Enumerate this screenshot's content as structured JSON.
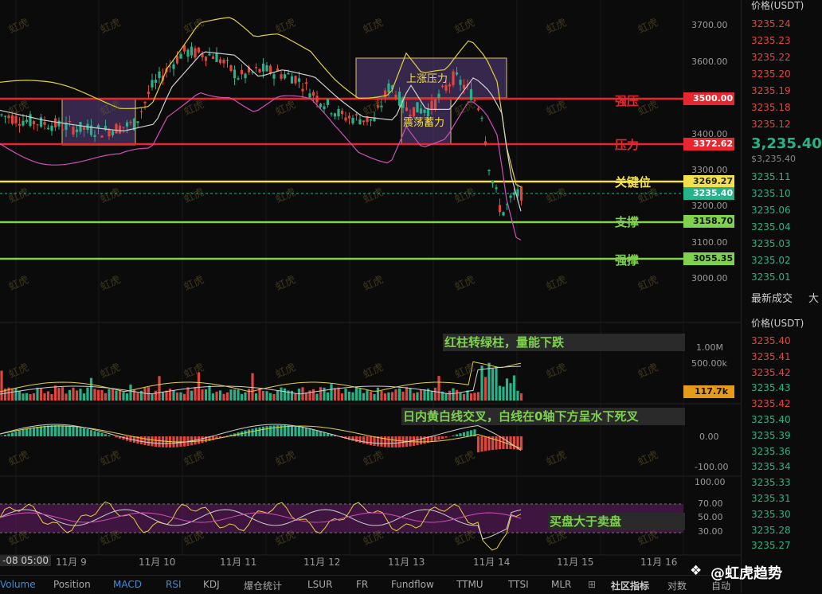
{
  "price_axis_ticks": [
    "3700.00",
    "3600.00",
    "3500.00",
    "3400.00",
    "3300.00",
    "3200.00",
    "3100.00",
    "3000.00"
  ],
  "volume_axis_ticks": [
    "1.00M",
    "500.00k"
  ],
  "macd_axis_ticks": [
    "0.00",
    "-100.00"
  ],
  "rsi_axis_ticks": [
    "100.00",
    "70.00",
    "50.00",
    "30.00"
  ],
  "date_ticks": [
    "-08 05:00",
    "11月 9",
    "11月 10",
    "11月 11",
    "11月 12",
    "11月 13",
    "11月 14",
    "11月 15",
    "11月 16"
  ],
  "level_labels": {
    "strong_resistance": "强压",
    "resistance": "压力",
    "key_level": "关键位",
    "support": "支撑",
    "strong_support": "强撑"
  },
  "level_tags": {
    "strong_resistance": "3500.00",
    "resistance": "3372.62",
    "key_level": "3269.27",
    "current": "3235.40",
    "support": "3158.70",
    "strong_support": "3055.35",
    "volume": "117.7k"
  },
  "box_labels": {
    "rise_pressure": "上涨压力",
    "consolidation": "震荡蓄力"
  },
  "notes": {
    "volume": "红柱转绿柱，量能下跌",
    "macd": "日内黄白线交叉，白线在0轴下方呈水下死叉",
    "rsi": "买盘大于卖盘"
  },
  "orderbook": {
    "header": "价格(USDT)",
    "asks": [
      "3235.24",
      "3235.23",
      "3235.22",
      "3235.20",
      "3235.19",
      "3235.18",
      "3235.12"
    ],
    "last_price": "3,235.40",
    "last_price_sub": "$3,235.40",
    "bids": [
      "3235.11",
      "3235.10",
      "3235.06",
      "3235.04",
      "3235.03",
      "3235.02",
      "3235.01"
    ],
    "trades_title": "最新成交",
    "trades_tab2": "大",
    "trades_header": "价格(USDT)",
    "trades": [
      {
        "p": "3235.40",
        "c": "#e0463f"
      },
      {
        "p": "3235.41",
        "c": "#e0463f"
      },
      {
        "p": "3235.42",
        "c": "#e0463f"
      },
      {
        "p": "3235.43",
        "c": "#26b28a"
      },
      {
        "p": "3235.42",
        "c": "#e0463f"
      },
      {
        "p": "3235.40",
        "c": "#26b28a"
      },
      {
        "p": "3235.39",
        "c": "#26b28a"
      },
      {
        "p": "3235.36",
        "c": "#26b28a"
      },
      {
        "p": "3235.34",
        "c": "#26b28a"
      },
      {
        "p": "3235.33",
        "c": "#26b28a"
      },
      {
        "p": "3235.31",
        "c": "#26b28a"
      },
      {
        "p": "3235.30",
        "c": "#26b28a"
      },
      {
        "p": "3235.28",
        "c": "#26b28a"
      },
      {
        "p": "3235.27",
        "c": "#26b28a"
      }
    ]
  },
  "bottom_tabs": [
    "Volume",
    "Position",
    "MACD",
    "RSI",
    "KDJ",
    "爆仓统计",
    "LSUR",
    "FR",
    "Fundflow",
    "TTMU",
    "TTSI",
    "MLR",
    "社区指标",
    "对数",
    "自动"
  ],
  "brand": "@虹虎趋势",
  "watermark": "虹虎",
  "colors": {
    "up": "#26b28a",
    "down": "#e0463f",
    "red_line": "#e8262f",
    "yellow_line": "#f3e04a",
    "green_line": "#7fd14e",
    "box": "#6a4a9c"
  }
}
